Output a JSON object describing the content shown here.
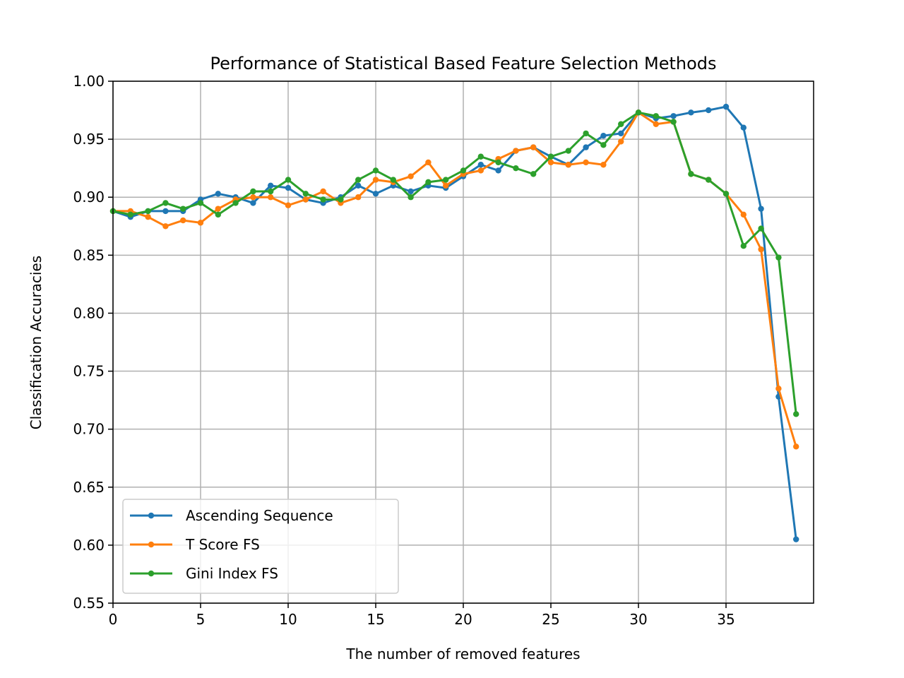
{
  "chart_data": {
    "type": "line",
    "title": "Performance of Statistical Based Feature Selection Methods",
    "xlabel": "The number of removed features",
    "ylabel": "Classification Accuracies",
    "xlim": [
      0,
      40
    ],
    "ylim": [
      0.55,
      1.0
    ],
    "xticks": [
      0,
      5,
      10,
      15,
      20,
      25,
      30,
      35
    ],
    "yticks": [
      0.55,
      0.6,
      0.65,
      0.7,
      0.75,
      0.8,
      0.85,
      0.9,
      0.95,
      1.0
    ],
    "xtick_labels": [
      "0",
      "5",
      "10",
      "15",
      "20",
      "25",
      "30",
      "35"
    ],
    "ytick_labels": [
      "0.55",
      "0.60",
      "0.65",
      "0.70",
      "0.75",
      "0.80",
      "0.85",
      "0.90",
      "0.95",
      "1.00"
    ],
    "grid": true,
    "legend_position": "lower-left",
    "x": [
      0,
      1,
      2,
      3,
      4,
      5,
      6,
      7,
      8,
      9,
      10,
      11,
      12,
      13,
      14,
      15,
      16,
      17,
      18,
      19,
      20,
      21,
      22,
      23,
      24,
      25,
      26,
      27,
      28,
      29,
      30,
      31,
      32,
      33,
      34,
      35,
      36,
      37,
      38,
      39
    ],
    "series": [
      {
        "name": "Ascending Sequence",
        "color": "#1f77b4",
        "values": [
          0.888,
          0.883,
          0.888,
          0.888,
          0.888,
          0.898,
          0.903,
          0.9,
          0.895,
          0.91,
          0.908,
          0.898,
          0.895,
          0.9,
          0.91,
          0.903,
          0.91,
          0.905,
          0.91,
          0.908,
          0.918,
          0.928,
          0.923,
          0.94,
          0.943,
          0.935,
          0.928,
          0.943,
          0.953,
          0.955,
          0.973,
          0.968,
          0.97,
          0.973,
          0.975,
          0.978,
          0.96,
          0.89,
          0.728,
          0.605
        ]
      },
      {
        "name": "T Score FS",
        "color": "#ff7f0e",
        "values": [
          0.888,
          0.888,
          0.883,
          0.875,
          0.88,
          0.878,
          0.89,
          0.898,
          0.9,
          0.9,
          0.893,
          0.898,
          0.905,
          0.895,
          0.9,
          0.915,
          0.913,
          0.918,
          0.93,
          0.91,
          0.92,
          0.923,
          0.933,
          0.94,
          0.943,
          0.93,
          0.928,
          0.93,
          0.928,
          0.948,
          0.973,
          0.963,
          0.965,
          0.92,
          0.915,
          0.903,
          0.885,
          0.855,
          0.735,
          0.685
        ]
      },
      {
        "name": "Gini Index FS",
        "color": "#2ca02c",
        "values": [
          0.888,
          0.885,
          0.888,
          0.895,
          0.89,
          0.895,
          0.885,
          0.895,
          0.905,
          0.905,
          0.915,
          0.903,
          0.898,
          0.898,
          0.915,
          0.923,
          0.915,
          0.9,
          0.913,
          0.915,
          0.923,
          0.935,
          0.93,
          0.925,
          0.92,
          0.935,
          0.94,
          0.955,
          0.945,
          0.963,
          0.973,
          0.97,
          0.965,
          0.92,
          0.915,
          0.903,
          0.858,
          0.873,
          0.848,
          0.713
        ]
      }
    ]
  }
}
